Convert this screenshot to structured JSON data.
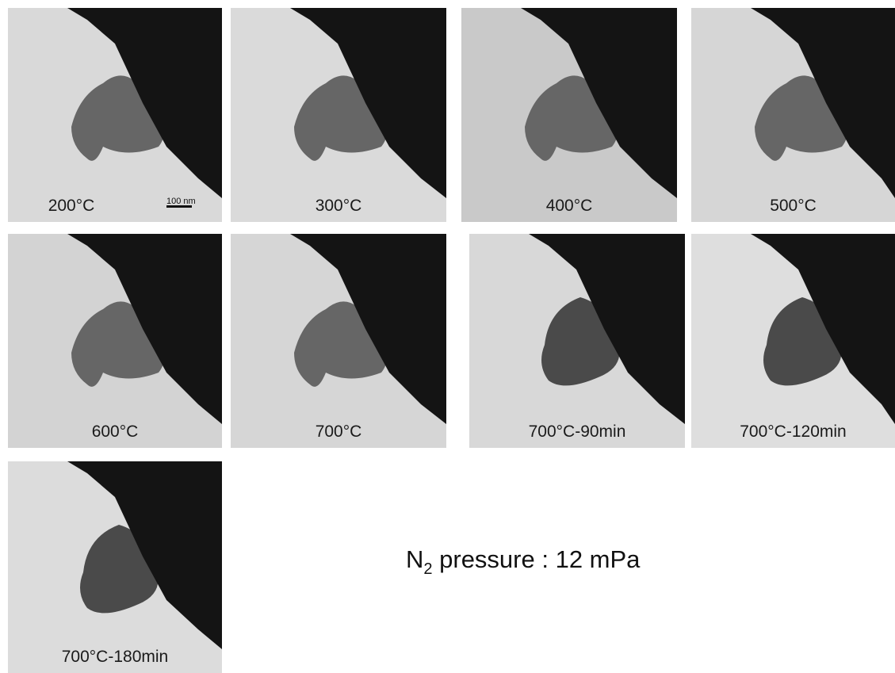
{
  "panels": [
    {
      "label": "200°C"
    },
    {
      "label": "300°C"
    },
    {
      "label": "400°C"
    },
    {
      "label": "500°C"
    },
    {
      "label": "600°C"
    },
    {
      "label": "700°C"
    },
    {
      "label": "700°C-90min"
    },
    {
      "label": "700°C-120min"
    },
    {
      "label": "700°C-180min"
    }
  ],
  "scale_bar": "100 nm",
  "caption": {
    "main": "N",
    "sub": "2",
    "rest": " pressure : 12 mPa"
  }
}
